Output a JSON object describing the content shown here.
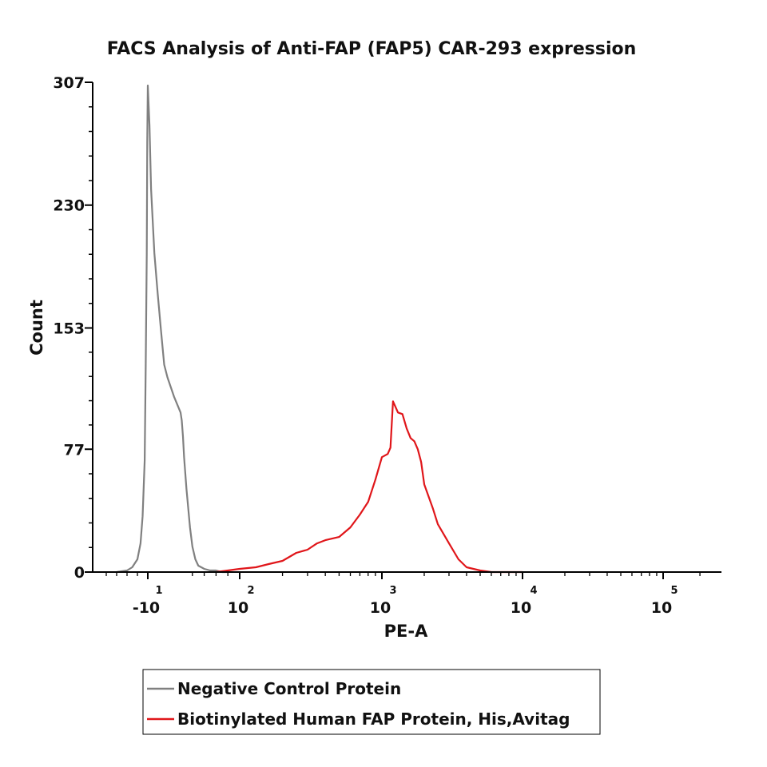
{
  "chart_data": {
    "type": "line",
    "title": "FACS Analysis of Anti-FAP (FAP5) CAR-293 expression",
    "xlabel": "PE-A",
    "ylabel": "Count",
    "x_scale": "biexponential",
    "ylim": [
      0,
      307
    ],
    "y_ticks": [
      {
        "value": 0,
        "label": "0"
      },
      {
        "value": 77,
        "label": "77"
      },
      {
        "value": 153,
        "label": "153"
      },
      {
        "value": 230,
        "label": "230"
      },
      {
        "value": 307,
        "label": "307"
      }
    ],
    "x_ticks": [
      {
        "value": -10,
        "base": "-10",
        "exp": "1"
      },
      {
        "value": 100,
        "base": "10",
        "exp": "2"
      },
      {
        "value": 1000,
        "base": "10",
        "exp": "3"
      },
      {
        "value": 10000,
        "base": "10",
        "exp": "4"
      },
      {
        "value": 100000,
        "base": "10",
        "exp": "5"
      }
    ],
    "legend_position": "bottom",
    "series": [
      {
        "name": "Negative Control Protein",
        "color": "#808080",
        "x": [
          -40,
          -30,
          -25,
          -20,
          -17,
          -15,
          -13,
          -12,
          -11,
          -10.5,
          -10,
          -9.5,
          -9,
          -8,
          -7,
          -6,
          -5,
          -4,
          -2,
          0,
          2,
          4,
          6,
          8,
          10,
          13,
          16,
          20,
          25,
          30,
          40,
          50,
          60,
          70,
          80
        ],
        "y": [
          0,
          1,
          3,
          8,
          18,
          35,
          70,
          130,
          200,
          270,
          305,
          280,
          240,
          200,
          175,
          152,
          130,
          122,
          110,
          100,
          95,
          85,
          72,
          62,
          52,
          40,
          28,
          16,
          8,
          4,
          2,
          1,
          1,
          0,
          0
        ]
      },
      {
        "name": "Biotinylated Human FAP Protein, His,Avitag",
        "color": "#e0161a",
        "x": [
          60,
          80,
          100,
          130,
          160,
          200,
          250,
          300,
          350,
          400,
          500,
          600,
          700,
          800,
          900,
          1000,
          1100,
          1150,
          1200,
          1300,
          1400,
          1500,
          1600,
          1700,
          1800,
          1900,
          2000,
          2300,
          2500,
          3000,
          3500,
          4000,
          5000,
          6000,
          8000,
          10000
        ],
        "y": [
          0,
          1,
          2,
          3,
          5,
          7,
          12,
          14,
          18,
          20,
          22,
          28,
          36,
          44,
          58,
          72,
          74,
          78,
          107,
          100,
          99,
          90,
          84,
          82,
          77,
          69,
          55,
          40,
          30,
          18,
          8,
          3,
          1,
          0,
          0,
          0
        ]
      }
    ]
  }
}
